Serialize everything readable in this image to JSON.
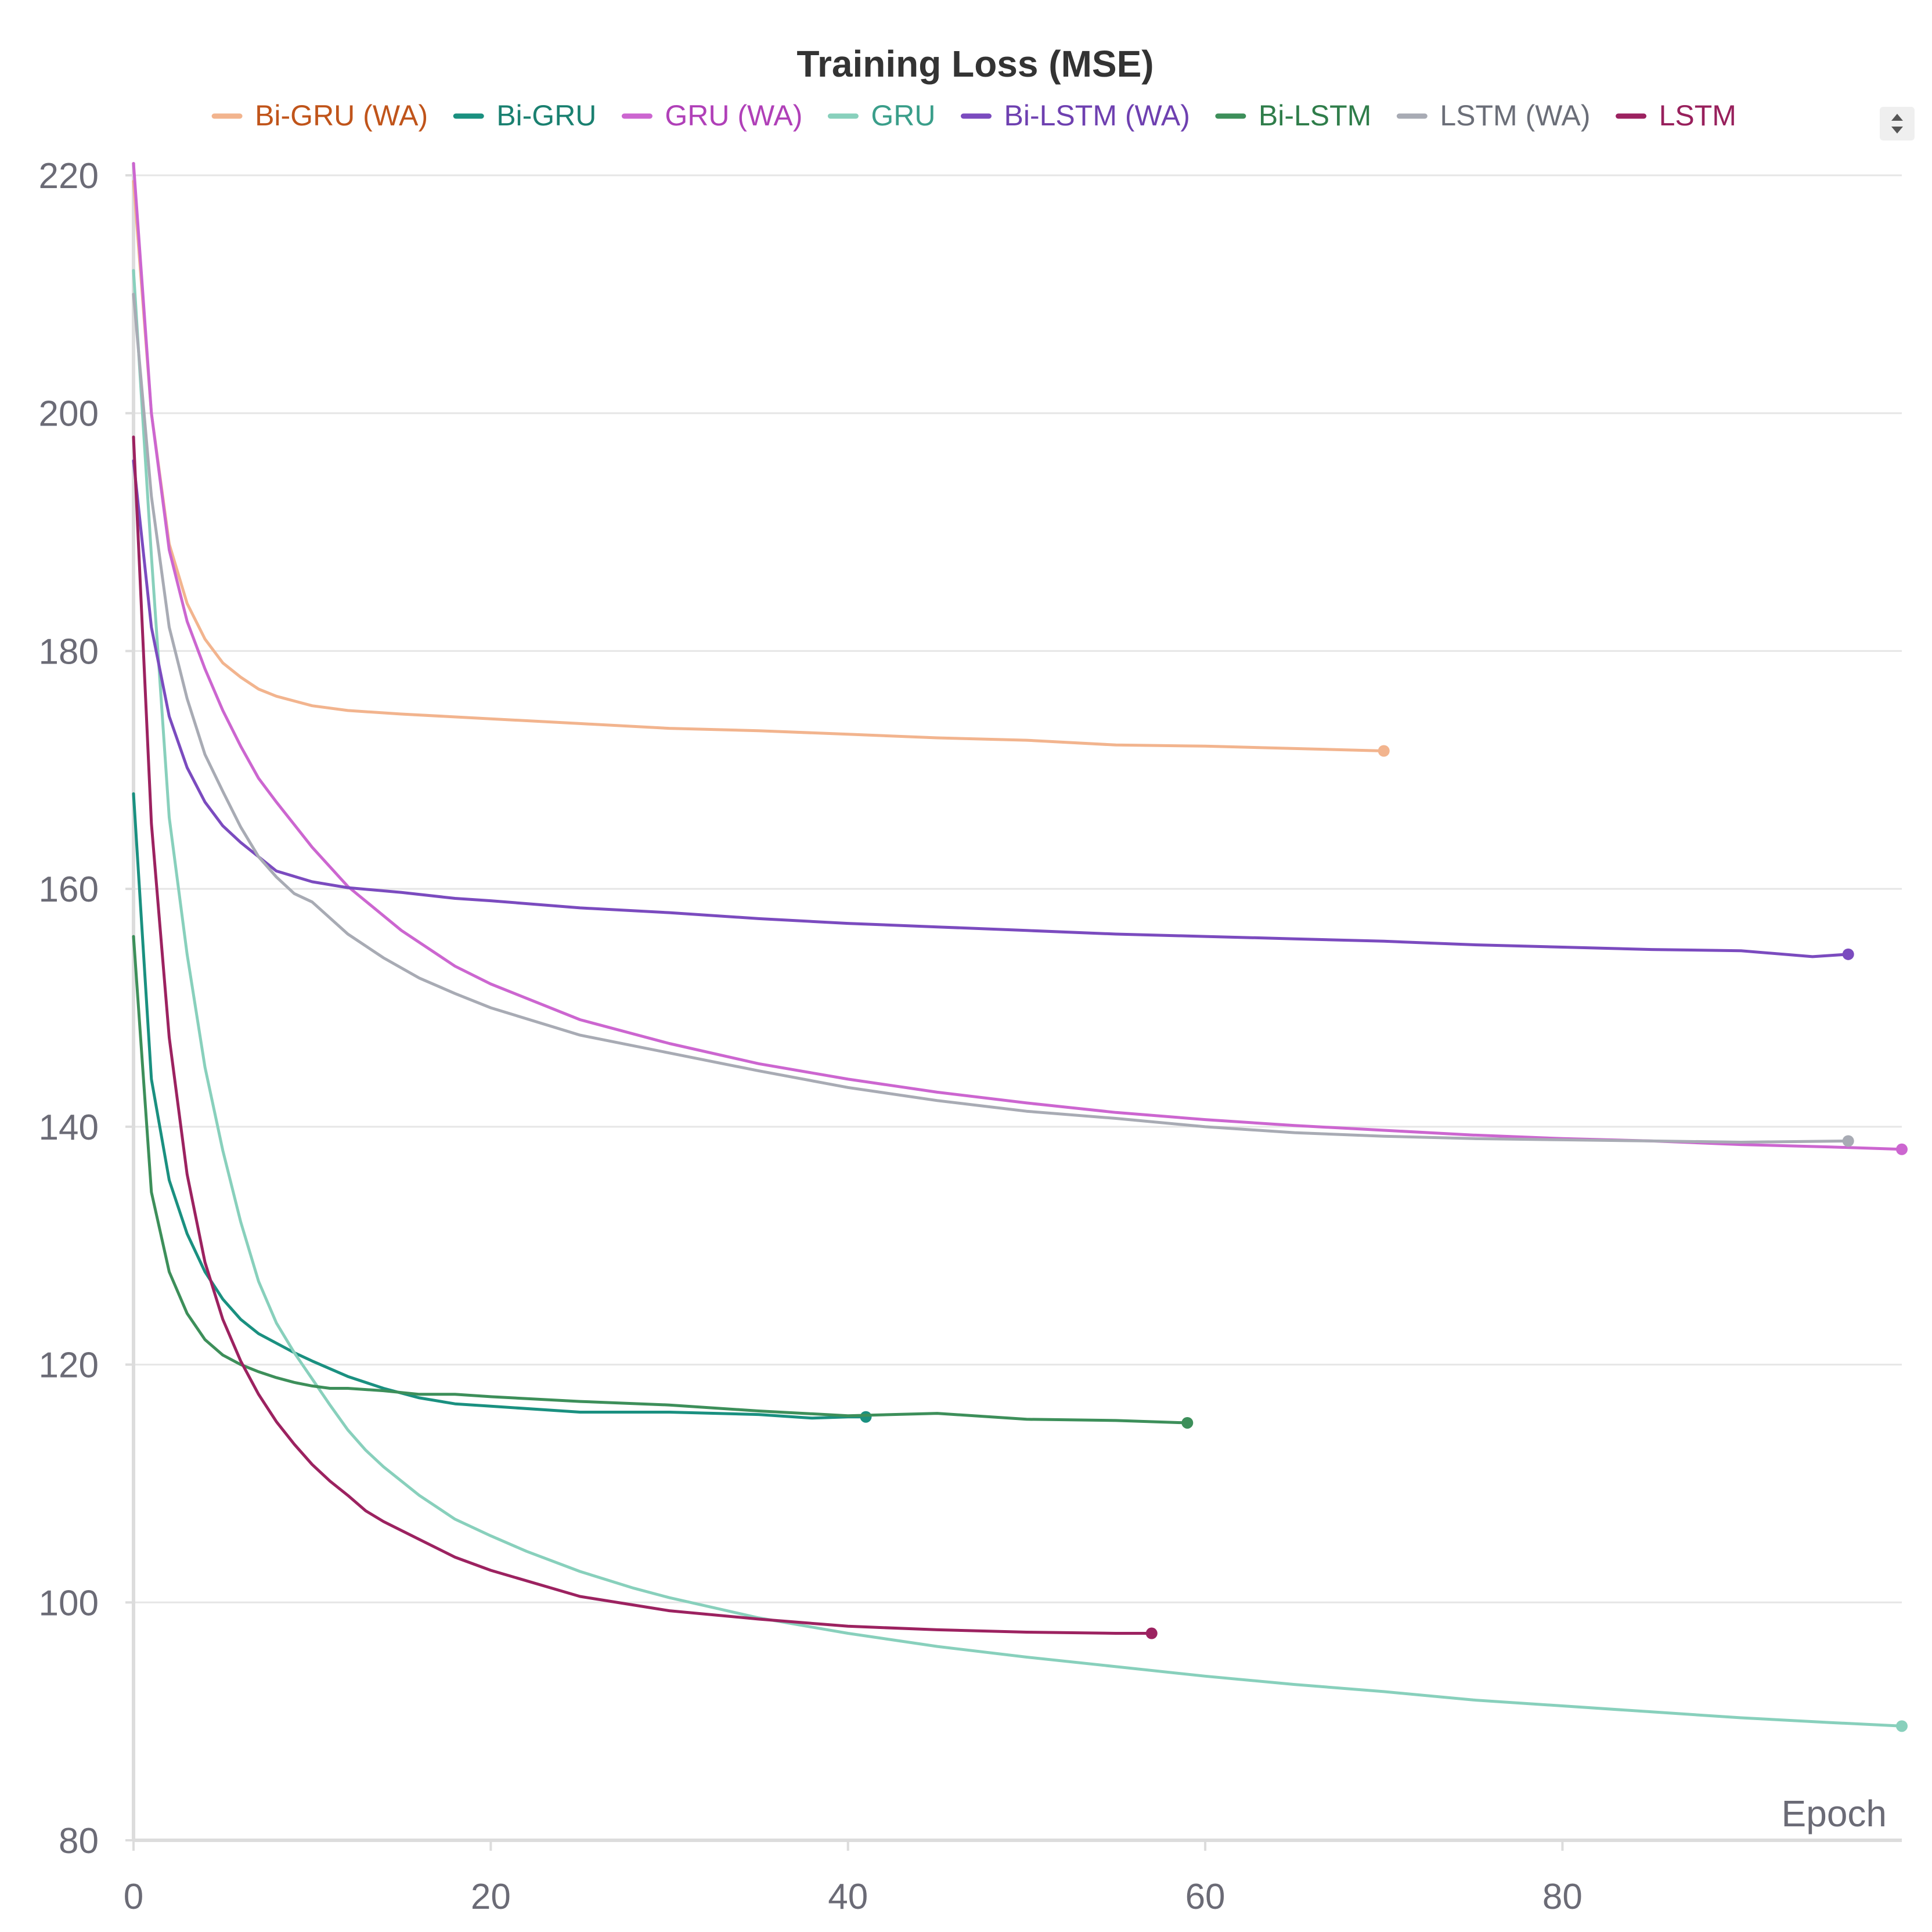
{
  "chart_data": {
    "type": "line",
    "title": "Training Loss (MSE)",
    "xlabel": "Epoch",
    "ylabel": "",
    "xlim": [
      0,
      99
    ],
    "ylim": [
      80,
      220
    ],
    "xticks": [
      0,
      20,
      40,
      60,
      80
    ],
    "yticks": [
      80,
      100,
      120,
      140,
      160,
      180,
      200,
      220
    ],
    "grid": true,
    "legend_position": "top",
    "series": [
      {
        "name": "Bi-GRU (WA)",
        "color": "#f2b48e",
        "text_color": "#c0541a",
        "x": [
          0,
          1,
          2,
          3,
          4,
          5,
          6,
          7,
          8,
          10,
          12,
          15,
          20,
          25,
          30,
          35,
          40,
          45,
          50,
          55,
          60,
          65,
          70
        ],
        "y": [
          219.5,
          200,
          189,
          184,
          181,
          179,
          177.8,
          176.8,
          176.2,
          175.4,
          175,
          174.7,
          174.3,
          173.9,
          173.5,
          173.3,
          173,
          172.7,
          172.5,
          172.1,
          172,
          171.8,
          171.6
        ]
      },
      {
        "name": "Bi-GRU",
        "color": "#1a9080",
        "text_color": "#1a8070",
        "x": [
          0,
          1,
          2,
          3,
          4,
          5,
          6,
          7,
          8,
          9,
          10,
          12,
          14,
          16,
          18,
          20,
          25,
          30,
          35,
          38,
          40,
          41
        ],
        "y": [
          168,
          144,
          135.5,
          131,
          127.8,
          125.5,
          123.8,
          122.6,
          121.8,
          121,
          120.3,
          119,
          118,
          117.2,
          116.7,
          116.5,
          116,
          116,
          115.8,
          115.5,
          115.6,
          115.6
        ]
      },
      {
        "name": "GRU (WA)",
        "color": "#cc66d0",
        "text_color": "#b040b8",
        "x": [
          0,
          1,
          2,
          3,
          4,
          5,
          6,
          7,
          8,
          10,
          12,
          15,
          18,
          20,
          25,
          30,
          35,
          40,
          45,
          50,
          55,
          60,
          65,
          70,
          75,
          80,
          85,
          90,
          95,
          99
        ],
        "y": [
          221,
          200,
          188.5,
          182.5,
          178.5,
          175,
          172,
          169.3,
          167.3,
          163.5,
          160.2,
          156.5,
          153.5,
          152,
          149,
          147,
          145.3,
          144,
          142.9,
          142,
          141.2,
          140.6,
          140.1,
          139.7,
          139.3,
          139,
          138.8,
          138.5,
          138.3,
          138.1
        ]
      },
      {
        "name": "GRU",
        "color": "#88d0bc",
        "text_color": "#3a9e8a",
        "x": [
          0,
          1,
          2,
          3,
          4,
          5,
          6,
          7,
          8,
          9,
          10,
          11,
          12,
          13,
          14,
          16,
          18,
          20,
          22,
          25,
          28,
          30,
          35,
          40,
          45,
          50,
          55,
          60,
          65,
          70,
          75,
          80,
          85,
          90,
          95,
          99
        ],
        "y": [
          212,
          188,
          166,
          154.5,
          145,
          138,
          132,
          127,
          123.5,
          121,
          118.8,
          116.6,
          114.5,
          112.8,
          111.4,
          109,
          107,
          105.6,
          104.3,
          102.6,
          101.2,
          100.4,
          98.7,
          97.4,
          96.3,
          95.4,
          94.6,
          93.8,
          93.1,
          92.5,
          91.8,
          91.3,
          90.8,
          90.3,
          89.9,
          89.6
        ]
      },
      {
        "name": "Bi-LSTM (WA)",
        "color": "#7b4bbf",
        "text_color": "#6e40b0",
        "x": [
          0,
          1,
          2,
          3,
          4,
          5,
          6,
          7,
          8,
          10,
          12,
          15,
          18,
          20,
          25,
          30,
          35,
          40,
          45,
          50,
          55,
          60,
          65,
          70,
          75,
          80,
          85,
          90,
          94,
          96
        ],
        "y": [
          196,
          182,
          174.5,
          170.2,
          167.3,
          165.3,
          163.9,
          162.7,
          161.5,
          160.6,
          160.1,
          159.7,
          159.2,
          159.0,
          158.4,
          158,
          157.5,
          157.1,
          156.8,
          156.5,
          156.2,
          156,
          155.8,
          155.6,
          155.3,
          155.1,
          154.9,
          154.8,
          154.3,
          154.5
        ]
      },
      {
        "name": "Bi-LSTM",
        "color": "#3d8f5a",
        "text_color": "#2f7d4a",
        "x": [
          0,
          1,
          2,
          3,
          4,
          5,
          6,
          7,
          8,
          9,
          10,
          11,
          12,
          14,
          16,
          18,
          20,
          25,
          30,
          35,
          40,
          45,
          50,
          55,
          59
        ],
        "y": [
          156,
          134.5,
          127.8,
          124.3,
          122.1,
          120.8,
          120,
          119.4,
          118.9,
          118.5,
          118.2,
          118,
          118,
          117.8,
          117.5,
          117.5,
          117.3,
          116.9,
          116.6,
          116.1,
          115.7,
          115.9,
          115.4,
          115.3,
          115.1
        ]
      },
      {
        "name": "LSTM (WA)",
        "color": "#a8abb4",
        "text_color": "#6b6e78",
        "x": [
          0,
          1,
          2,
          3,
          4,
          5,
          6,
          7,
          8,
          9,
          10,
          12,
          14,
          16,
          18,
          20,
          25,
          30,
          35,
          40,
          45,
          50,
          55,
          60,
          65,
          70,
          75,
          80,
          85,
          90,
          96
        ],
        "y": [
          210,
          193,
          182,
          176,
          171.3,
          168.2,
          165.2,
          162.7,
          161,
          159.6,
          158.9,
          156.2,
          154.2,
          152.5,
          151.2,
          150,
          147.7,
          146.2,
          144.7,
          143.3,
          142.2,
          141.3,
          140.7,
          140,
          139.5,
          139.2,
          139,
          138.9,
          138.8,
          138.7,
          138.8
        ]
      },
      {
        "name": "LSTM",
        "color": "#9c2260",
        "text_color": "#98205c",
        "x": [
          0,
          1,
          2,
          3,
          4,
          5,
          6,
          7,
          8,
          9,
          10,
          11,
          12,
          13,
          14,
          16,
          18,
          20,
          25,
          30,
          35,
          40,
          45,
          50,
          55,
          57
        ],
        "y": [
          198,
          165.5,
          147.5,
          136,
          128.6,
          123.8,
          120.3,
          117.5,
          115.2,
          113.3,
          111.6,
          110.2,
          109,
          107.7,
          106.8,
          105.3,
          103.8,
          102.7,
          100.5,
          99.3,
          98.6,
          98,
          97.7,
          97.5,
          97.4,
          97.4
        ]
      }
    ]
  }
}
